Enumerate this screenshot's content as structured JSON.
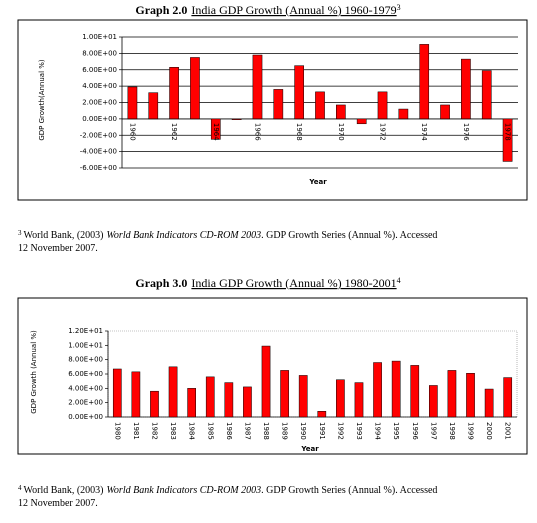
{
  "chart_data": [
    {
      "type": "bar",
      "label": "Graph 2.0",
      "title": "India GDP Growth (Annual %) 1960-1979",
      "footnote_ref": "3",
      "x_label": "Year",
      "y_label": "GDP Growth(Annual %)",
      "categories": [
        "1960",
        null,
        "1962",
        null,
        "1964",
        null,
        "1966",
        null,
        "1968",
        null,
        "1970",
        null,
        "1972",
        null,
        "1974",
        null,
        "1976",
        null,
        "1978"
      ],
      "values": [
        3.9,
        3.2,
        6.3,
        7.5,
        -2.5,
        -0.1,
        7.8,
        3.6,
        6.5,
        3.3,
        1.7,
        -0.6,
        3.3,
        1.2,
        9.1,
        1.7,
        7.3,
        5.9,
        -5.2
      ],
      "color": "#ff0000",
      "grid": true,
      "ylim": [
        -6,
        10
      ],
      "yticks": [
        {
          "value": -6,
          "label": "-6.00E+00"
        },
        {
          "value": -4,
          "label": "-4.00E+00"
        },
        {
          "value": -2,
          "label": "-2.00E+00"
        },
        {
          "value": 0,
          "label": "0.00E+00"
        },
        {
          "value": 2,
          "label": "2.00E+00"
        },
        {
          "value": 4,
          "label": "4.00E+00"
        },
        {
          "value": 6,
          "label": "6.00E+00"
        },
        {
          "value": 8,
          "label": "8.00E+00"
        },
        {
          "value": 10,
          "label": "1.00E+01"
        }
      ]
    },
    {
      "type": "bar",
      "label": "Graph 3.0",
      "title": "India GDP Growth (Annual %) 1980-2001",
      "footnote_ref": "4",
      "x_label": "Year",
      "y_label": "GDP Growth (Annual %)",
      "categories": [
        "1980",
        "1981",
        "1982",
        "1983",
        "1984",
        "1985",
        "1986",
        "1987",
        "1988",
        "1989",
        "1990",
        "1991",
        "1992",
        "1993",
        "1994",
        "1995",
        "1996",
        "1997",
        "1998",
        "1999",
        "2000",
        "2001"
      ],
      "values": [
        6.7,
        6.3,
        3.6,
        7.0,
        4.0,
        5.6,
        4.8,
        4.2,
        9.9,
        6.5,
        5.8,
        0.8,
        5.2,
        4.8,
        7.6,
        7.8,
        7.2,
        4.4,
        6.5,
        6.1,
        3.9,
        5.5
      ],
      "color": "#ff0000",
      "grid": false,
      "ylim": [
        0,
        12
      ],
      "yticks": [
        {
          "value": 0,
          "label": "0.00E+00"
        },
        {
          "value": 2,
          "label": "2.00E+00"
        },
        {
          "value": 4,
          "label": "4.00E+00"
        },
        {
          "value": 6,
          "label": "6.00E+00"
        },
        {
          "value": 8,
          "label": "8.00E+00"
        },
        {
          "value": 10,
          "label": "1.00E+01"
        },
        {
          "value": 12,
          "label": "1.20E+01"
        }
      ]
    }
  ],
  "footnotes": [
    {
      "mark": "3",
      "source": "World Bank, (2003)",
      "title": "World Bank Indicators CD-ROM 2003",
      "rest": ". GDP Growth Series (Annual %). Accessed",
      "date": "12 November 2007."
    },
    {
      "mark": "4",
      "source": "World Bank, (2003)",
      "title": "World Bank Indicators CD-ROM 2003",
      "rest": ". GDP Growth Series (Annual %). Accessed",
      "date": "12 November 2007."
    }
  ]
}
